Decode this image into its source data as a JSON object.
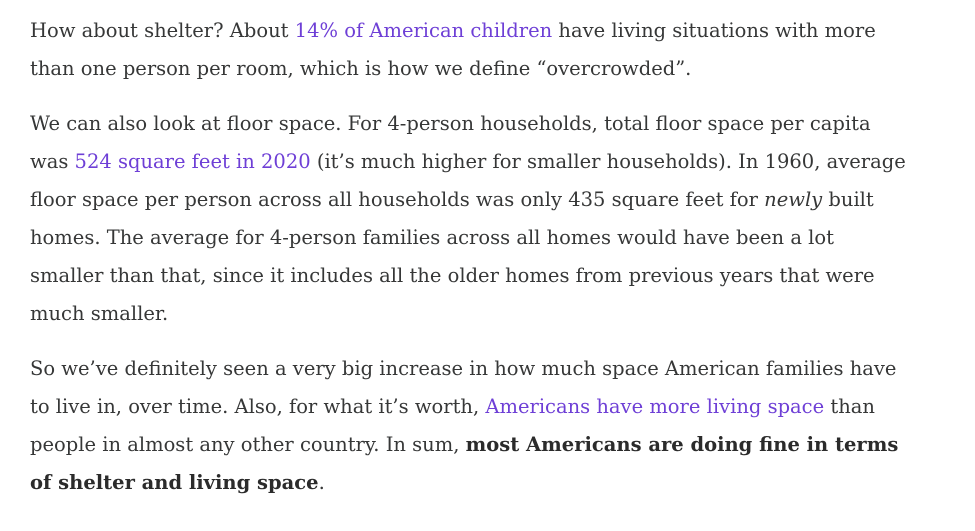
{
  "colors": {
    "text": "#363737",
    "link": "#6e3fd6",
    "background": "#ffffff"
  },
  "paragraphs": [
    {
      "lines": [
        [
          {
            "t": "How about shelter? About "
          },
          {
            "t": "14% of American children",
            "link": true
          },
          {
            "t": " have living situations with more"
          }
        ],
        [
          {
            "t": "than one person per room, which is how we define “overcrowded”."
          }
        ]
      ]
    },
    {
      "lines": [
        [
          {
            "t": "We can also look at floor space. For 4-person households, total floor space per capita"
          }
        ],
        [
          {
            "t": "was "
          },
          {
            "t": "524 square feet in 2020",
            "link": true
          },
          {
            "t": " (it’s much higher for smaller households). In 1960, average"
          }
        ],
        [
          {
            "t": "floor space per person across all households was only 435 square feet for "
          },
          {
            "t": "newly",
            "em": true
          },
          {
            "t": " built"
          }
        ],
        [
          {
            "t": "homes. The average for 4-person families across all homes would have been a lot"
          }
        ],
        [
          {
            "t": "smaller than that, since it includes all the older homes from previous years that were"
          }
        ],
        [
          {
            "t": "much smaller."
          }
        ]
      ]
    },
    {
      "lines": [
        [
          {
            "t": "So we’ve definitely seen a very big increase in how much space American families have"
          }
        ],
        [
          {
            "t": "to live in, over time. Also, for what it’s worth, "
          },
          {
            "t": "Americans have more living space",
            "link": true
          },
          {
            "t": " than"
          }
        ],
        [
          {
            "t": "people in almost any other country. In sum, "
          },
          {
            "t": "most Americans are doing fine in terms",
            "strong": true
          }
        ],
        [
          {
            "t": "of shelter and living space",
            "strong": true
          },
          {
            "t": "."
          }
        ]
      ]
    }
  ]
}
